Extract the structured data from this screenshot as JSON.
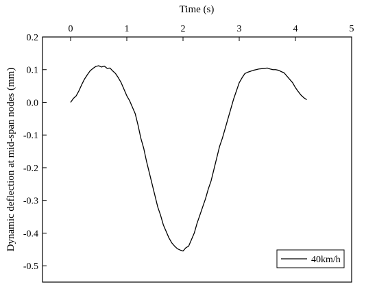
{
  "chart_data": {
    "type": "line",
    "title": "",
    "xlabel": "Time (s)",
    "ylabel": "Dynamic deflection at mid-span nodes (mm)",
    "xlim": [
      -0.5,
      5
    ],
    "ylim": [
      -0.55,
      0.2
    ],
    "x_ticks": [
      0,
      1,
      2,
      3,
      4,
      5
    ],
    "y_ticks": [
      -0.5,
      -0.4,
      -0.3,
      -0.2,
      -0.1,
      0.0,
      0.1,
      0.2
    ],
    "x_tick_labels": [
      "0",
      "1",
      "2",
      "3",
      "4",
      "5"
    ],
    "y_tick_labels": [
      "-0.5",
      "-0.4",
      "-0.3",
      "-0.2",
      "-0.1",
      "0.0",
      "0.1",
      "0.2"
    ],
    "x_axis_position": "top",
    "grid": false,
    "legend": {
      "position": "bottom-right",
      "entries": [
        "40km/h"
      ]
    },
    "colors": {
      "line": "#000000",
      "axes": "#000000"
    },
    "series": [
      {
        "name": "40km/h",
        "x": [
          0.0,
          0.05,
          0.1,
          0.15,
          0.2,
          0.25,
          0.3,
          0.35,
          0.4,
          0.45,
          0.5,
          0.55,
          0.6,
          0.65,
          0.7,
          0.75,
          0.8,
          0.85,
          0.9,
          0.95,
          1.0,
          1.05,
          1.1,
          1.15,
          1.2,
          1.25,
          1.3,
          1.35,
          1.4,
          1.45,
          1.5,
          1.55,
          1.6,
          1.65,
          1.7,
          1.75,
          1.8,
          1.85,
          1.9,
          1.95,
          2.0,
          2.05,
          2.1,
          2.15,
          2.2,
          2.25,
          2.3,
          2.35,
          2.4,
          2.45,
          2.5,
          2.55,
          2.6,
          2.65,
          2.7,
          2.75,
          2.8,
          2.85,
          2.9,
          2.95,
          3.0,
          3.05,
          3.1,
          3.15,
          3.2,
          3.25,
          3.3,
          3.35,
          3.4,
          3.45,
          3.5,
          3.55,
          3.6,
          3.65,
          3.7,
          3.75,
          3.8,
          3.85,
          3.9,
          3.95,
          4.0,
          4.05,
          4.1,
          4.15,
          4.2
        ],
        "values": [
          0.0,
          0.012,
          0.02,
          0.036,
          0.055,
          0.072,
          0.085,
          0.097,
          0.104,
          0.11,
          0.112,
          0.108,
          0.111,
          0.104,
          0.105,
          0.096,
          0.088,
          0.075,
          0.06,
          0.04,
          0.02,
          0.005,
          -0.015,
          -0.035,
          -0.07,
          -0.11,
          -0.14,
          -0.18,
          -0.215,
          -0.25,
          -0.285,
          -0.32,
          -0.345,
          -0.375,
          -0.395,
          -0.415,
          -0.43,
          -0.44,
          -0.448,
          -0.452,
          -0.455,
          -0.445,
          -0.44,
          -0.42,
          -0.4,
          -0.37,
          -0.345,
          -0.32,
          -0.295,
          -0.265,
          -0.24,
          -0.205,
          -0.17,
          -0.135,
          -0.11,
          -0.08,
          -0.05,
          -0.02,
          0.01,
          0.035,
          0.06,
          0.075,
          0.088,
          0.092,
          0.095,
          0.098,
          0.1,
          0.102,
          0.103,
          0.104,
          0.105,
          0.102,
          0.1,
          0.1,
          0.098,
          0.094,
          0.09,
          0.08,
          0.07,
          0.06,
          0.045,
          0.033,
          0.022,
          0.014,
          0.008
        ]
      }
    ]
  }
}
